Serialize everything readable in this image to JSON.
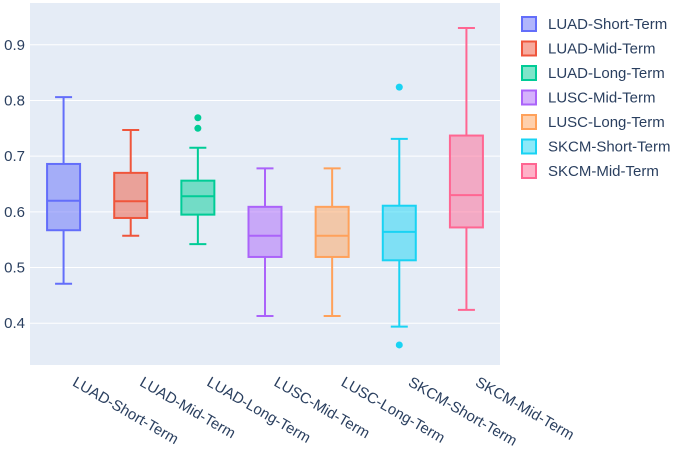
{
  "chart_data": {
    "type": "box",
    "title": "",
    "xlabel": "",
    "ylabel": "",
    "ylim": [
      0.325,
      0.975
    ],
    "yticks": [
      "0.4",
      "0.5",
      "0.6",
      "0.7",
      "0.8",
      "0.9"
    ],
    "categories": [
      "LUAD-Short-Term",
      "LUAD-Mid-Term",
      "LUAD-Long-Term",
      "LUSC-Mid-Term",
      "LUSC-Long-Term",
      "SKCM-Short-Term",
      "SKCM-Mid-Term"
    ],
    "series": [
      {
        "name": "LUAD-Short-Term",
        "color": "#636efa",
        "min": 0.471,
        "q1": 0.567,
        "median": 0.62,
        "q3": 0.686,
        "max": 0.806,
        "outliers": []
      },
      {
        "name": "LUAD-Mid-Term",
        "color": "#ef553b",
        "min": 0.557,
        "q1": 0.589,
        "median": 0.619,
        "q3": 0.67,
        "max": 0.747,
        "outliers": []
      },
      {
        "name": "LUAD-Long-Term",
        "color": "#00cc96",
        "min": 0.542,
        "q1": 0.595,
        "median": 0.628,
        "q3": 0.656,
        "max": 0.715,
        "outliers": [
          0.75,
          0.769
        ]
      },
      {
        "name": "LUSC-Mid-Term",
        "color": "#ab63fa",
        "min": 0.413,
        "q1": 0.519,
        "median": 0.557,
        "q3": 0.609,
        "max": 0.678,
        "outliers": []
      },
      {
        "name": "LUSC-Long-Term",
        "color": "#ffa15a",
        "min": 0.413,
        "q1": 0.519,
        "median": 0.557,
        "q3": 0.609,
        "max": 0.678,
        "outliers": []
      },
      {
        "name": "SKCM-Short-Term",
        "color": "#19d3f3",
        "min": 0.394,
        "q1": 0.513,
        "median": 0.564,
        "q3": 0.611,
        "max": 0.731,
        "outliers": [
          0.361,
          0.824
        ]
      },
      {
        "name": "SKCM-Mid-Term",
        "color": "#ff6692",
        "min": 0.424,
        "q1": 0.572,
        "median": 0.63,
        "q3": 0.737,
        "max": 0.93,
        "outliers": []
      }
    ],
    "legend": {
      "position": "right",
      "entries": [
        "LUAD-Short-Term",
        "LUAD-Mid-Term",
        "LUAD-Long-Term",
        "LUSC-Mid-Term",
        "LUSC-Long-Term",
        "SKCM-Short-Term",
        "SKCM-Mid-Term"
      ]
    },
    "grid": true,
    "plot_bgcolor": "#e5ecf6"
  }
}
